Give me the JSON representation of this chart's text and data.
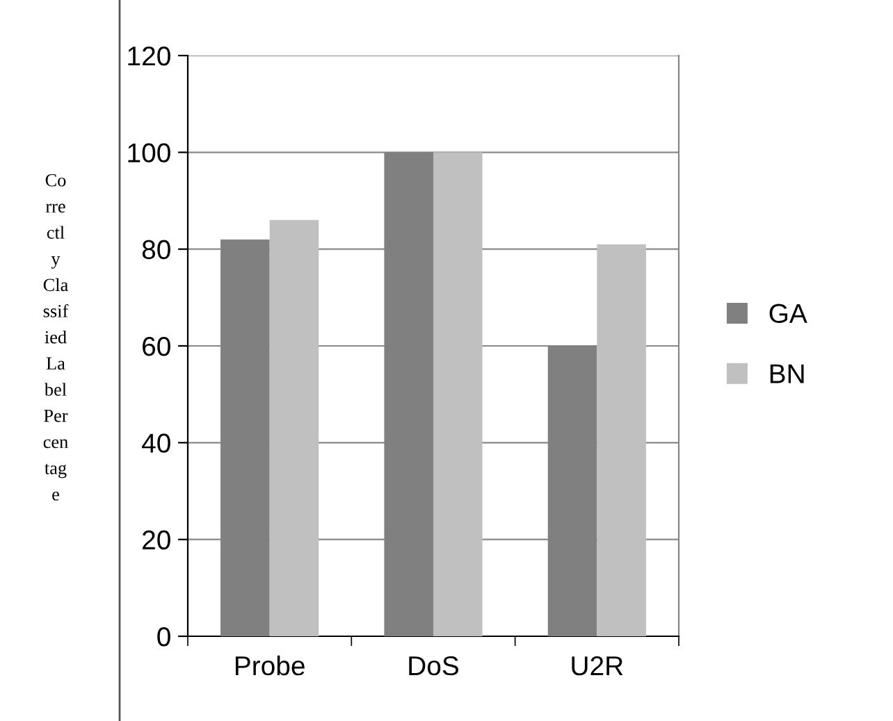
{
  "chart_data": {
    "type": "bar",
    "ylabel": "Co\nrre\nctl\ny\nCla\nssif\nied\nLa\nbel\nPer\ncen\ntag\ne",
    "categories": [
      "Probe",
      "DoS",
      "U2R"
    ],
    "series": [
      {
        "name": "GA",
        "color": "#808080",
        "values": [
          82,
          100,
          60
        ]
      },
      {
        "name": "BN",
        "color": "#c0c0c0",
        "values": [
          86,
          100,
          81
        ]
      }
    ],
    "ylim": [
      0,
      120
    ],
    "yticks": [
      0,
      20,
      40,
      60,
      80,
      100,
      120
    ],
    "grid": "y",
    "legend": "right"
  }
}
